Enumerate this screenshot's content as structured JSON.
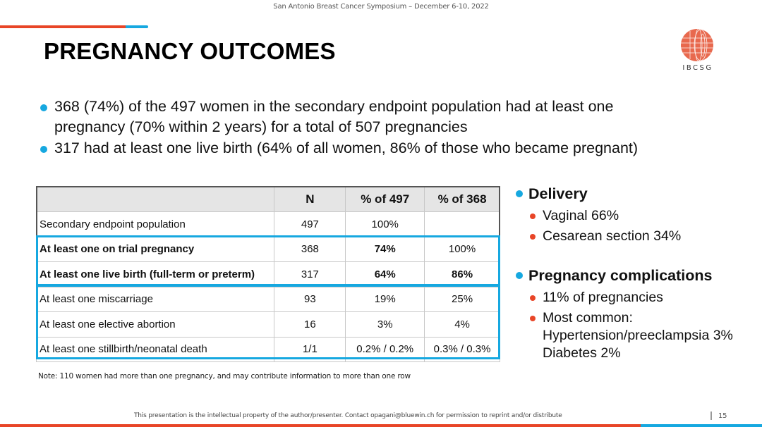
{
  "header": {
    "conference": "San Antonio Breast Cancer Symposium – December 6-10, 2022"
  },
  "title": "PREGNANCY OUTCOMES",
  "logo": {
    "icon": "globe-icon",
    "text": "IBCSG",
    "color": "#e8694e"
  },
  "bullets": [
    {
      "lines": [
        "368 (74%) of the 497 women in the secondary endpoint population had at least one",
        "pregnancy (70% within 2 years) for a total of 507 pregnancies"
      ]
    },
    {
      "lines": [
        "317 had at least one live birth (64% of all women, 86% of those who became pregnant)"
      ]
    }
  ],
  "table": {
    "headers": [
      "",
      "N",
      "% of 497",
      "% of 368"
    ],
    "rows": [
      {
        "label": "Secondary endpoint population",
        "n": "497",
        "pct497": "100%",
        "pct368": ""
      },
      {
        "label": "At least one on trial pregnancy",
        "n": "368",
        "pct497": "74%",
        "pct368": "100%"
      },
      {
        "label": "At least one live birth (full-term or preterm)",
        "n": "317",
        "pct497": "64%",
        "pct368": "86%"
      },
      {
        "label": "At least one miscarriage",
        "n": "93",
        "pct497": "19%",
        "pct368": "25%"
      },
      {
        "label": "At least one elective abortion",
        "n": "16",
        "pct497": "3%",
        "pct368": "4%"
      },
      {
        "label": "At least one stillbirth/neonatal death",
        "n": "1/1",
        "pct497": "0.2% / 0.2%",
        "pct368": "0.3% / 0.3%"
      }
    ]
  },
  "side": {
    "delivery": {
      "heading": "Delivery",
      "items": [
        "Vaginal 66%",
        "Cesarean section 34%"
      ]
    },
    "complications": {
      "heading": "Pregnancy complications",
      "items": [
        "11% of pregnancies"
      ],
      "most_common": {
        "label": "Most common:",
        "lines": [
          "Hypertension/preeclampsia 3%",
          "Diabetes 2%"
        ]
      }
    }
  },
  "note": "Note: 110 women had more than one pregnancy, and may contribute information to more than one row",
  "footer": {
    "copyright": "This presentation is the intellectual property of the author/presenter. Contact opagani@bluewin.ch for permission to reprint and/or distribute",
    "page_number": "15"
  },
  "colors": {
    "accent_red": "#e84527",
    "accent_blue": "#16a8e0",
    "header_gray": "#e5e5e5"
  }
}
